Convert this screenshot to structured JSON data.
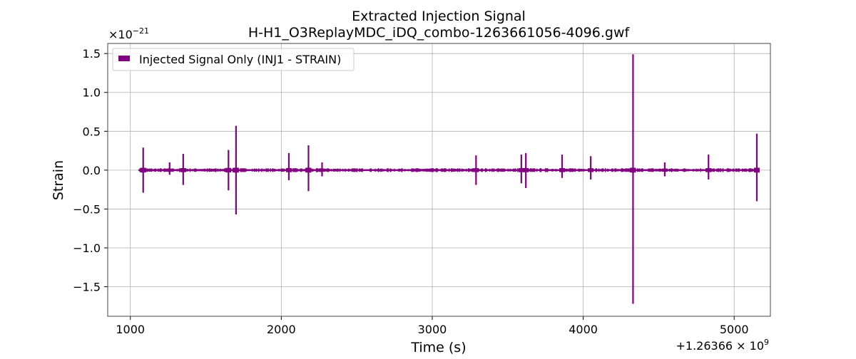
{
  "chart_data": {
    "type": "line",
    "title": "Extracted Injection Signal",
    "subtitle": "H-H1_O3ReplayMDC_iDQ_combo-1263661056-4096.gwf",
    "xlabel": "Time (s)",
    "ylabel": "Strain",
    "x_offset_label": "+1.26366 × 10",
    "x_offset_exponent": "9",
    "y_scale_label": "×10",
    "y_scale_exponent": "−21",
    "xlim": [
      850,
      5240
    ],
    "ylim": [
      -1.88,
      1.63
    ],
    "x_ticks": [
      1000,
      2000,
      3000,
      4000,
      5000
    ],
    "x_tick_labels": [
      "1000",
      "2000",
      "3000",
      "4000",
      "5000"
    ],
    "y_ticks": [
      -1.5,
      -1.0,
      -0.5,
      0.0,
      0.5,
      1.0,
      1.5
    ],
    "y_tick_labels": [
      "−1.5",
      "−1.0",
      "−0.5",
      "0.0",
      "0.5",
      "1.0",
      "1.5"
    ],
    "grid": true,
    "legend_position": "top-left",
    "series": [
      {
        "name": "Injected Signal Only (INJ1 - STRAIN)",
        "color": "#800080",
        "x_range": [
          1056,
          5152
        ],
        "baseline_amplitude": 0.02,
        "spikes": [
          {
            "x": 1085,
            "max": 0.29,
            "min": -0.29
          },
          {
            "x": 1260,
            "max": 0.1,
            "min": -0.06
          },
          {
            "x": 1350,
            "max": 0.21,
            "min": -0.19
          },
          {
            "x": 1650,
            "max": 0.26,
            "min": -0.26
          },
          {
            "x": 1700,
            "max": 0.57,
            "min": -0.57
          },
          {
            "x": 2050,
            "max": 0.22,
            "min": -0.13
          },
          {
            "x": 2180,
            "max": 0.32,
            "min": -0.27
          },
          {
            "x": 2270,
            "max": 0.1,
            "min": -0.08
          },
          {
            "x": 3290,
            "max": 0.19,
            "min": -0.19
          },
          {
            "x": 3590,
            "max": 0.2,
            "min": -0.17
          },
          {
            "x": 3620,
            "max": 0.22,
            "min": -0.23
          },
          {
            "x": 3860,
            "max": 0.2,
            "min": -0.1
          },
          {
            "x": 4050,
            "max": 0.18,
            "min": -0.12
          },
          {
            "x": 4330,
            "max": 1.49,
            "min": -1.72
          },
          {
            "x": 4540,
            "max": 0.1,
            "min": -0.08
          },
          {
            "x": 4830,
            "max": 0.2,
            "min": -0.12
          },
          {
            "x": 5150,
            "max": 0.47,
            "min": -0.4
          }
        ]
      }
    ]
  }
}
